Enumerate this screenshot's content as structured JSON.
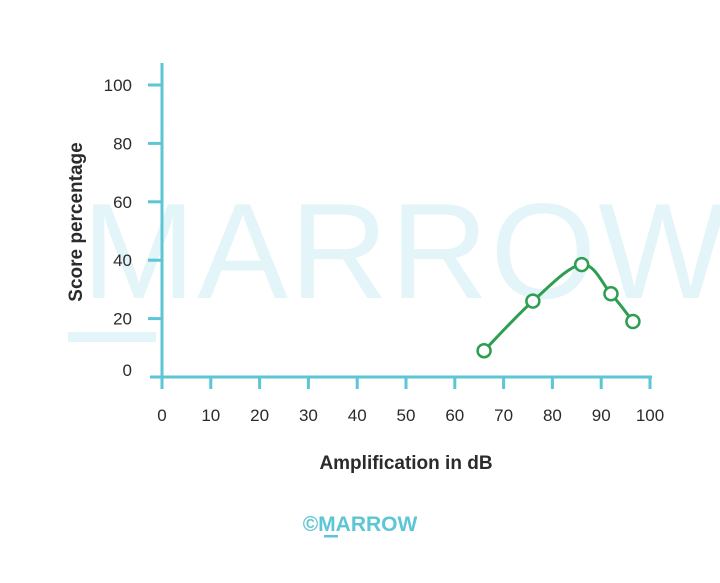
{
  "watermark_text": "MARROW",
  "brand_text": "©MARROW",
  "colors": {
    "axis": "#5cc6d6",
    "series": "#2e9e52",
    "text": "#2b2b2b",
    "watermark": "#e3f5f9"
  },
  "chart_data": {
    "type": "line",
    "title": "",
    "xlabel": "Amplification in dB",
    "ylabel": "Score percentage",
    "xlim": [
      0,
      100
    ],
    "ylim": [
      0,
      100
    ],
    "xticks": [
      "0",
      "10",
      "20",
      "30",
      "40",
      "50",
      "60",
      "70",
      "80",
      "90",
      "100"
    ],
    "yticks": [
      "0",
      "20",
      "40",
      "60",
      "80",
      "100"
    ],
    "grid": false,
    "series": [
      {
        "x": [
          66,
          76,
          86,
          92,
          96.5
        ],
        "y": [
          9,
          26,
          38.5,
          28.5,
          19
        ]
      }
    ]
  }
}
